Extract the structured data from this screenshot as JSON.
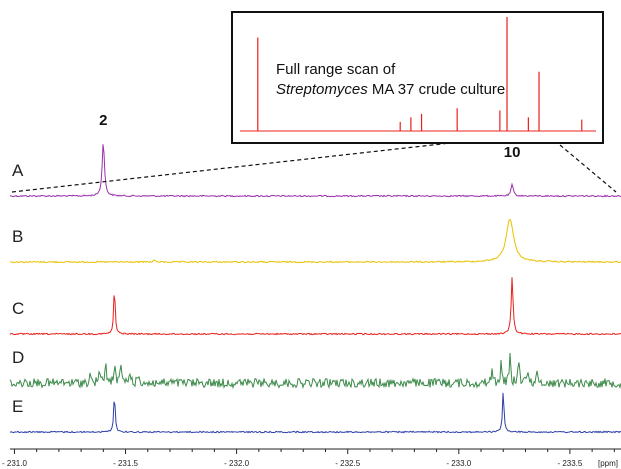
{
  "chart_data": {
    "type": "line",
    "title": "",
    "xlabel": "",
    "x_unit": "[ppm]",
    "x_axis_reversed": true,
    "xlim": [
      -230.98,
      -233.73
    ],
    "x_ticks": [
      {
        "value": -231.0,
        "label": "- 231.0"
      },
      {
        "value": -231.5,
        "label": "- 231.5"
      },
      {
        "value": -232.0,
        "label": "- 232.0"
      },
      {
        "value": -232.5,
        "label": "- 232.5"
      },
      {
        "value": -233.0,
        "label": "- 233.0"
      },
      {
        "value": -233.5,
        "label": "- 233.5"
      }
    ],
    "series": [
      {
        "name": "A",
        "color": "#9b2fae",
        "noise": "low",
        "peaks": [
          {
            "x": -231.4,
            "height": 0.95,
            "width": 0.006
          },
          {
            "x": -233.24,
            "height": 0.2,
            "width": 0.006
          }
        ]
      },
      {
        "name": "B",
        "color": "#e8c100",
        "noise": "low",
        "peaks": [
          {
            "x": -233.23,
            "height": 0.9,
            "width": 0.02
          },
          {
            "x": -231.63,
            "height": 0.05,
            "width": 0.004
          }
        ]
      },
      {
        "name": "C",
        "color": "#e8201c",
        "noise": "low",
        "peaks": [
          {
            "x": -231.45,
            "height": 0.82,
            "width": 0.004
          },
          {
            "x": -233.24,
            "height": 1.0,
            "width": 0.005
          }
        ]
      },
      {
        "name": "D",
        "color": "#3c8a4a",
        "noise": "high",
        "peaks": [
          {
            "x": -231.34,
            "height": 0.2,
            "width": 0.004
          },
          {
            "x": -231.38,
            "height": 0.3,
            "width": 0.004
          },
          {
            "x": -231.41,
            "height": 0.5,
            "width": 0.004
          },
          {
            "x": -231.45,
            "height": 0.45,
            "width": 0.004
          },
          {
            "x": -231.48,
            "height": 0.48,
            "width": 0.004
          },
          {
            "x": -231.52,
            "height": 0.3,
            "width": 0.004
          },
          {
            "x": -231.56,
            "height": 0.2,
            "width": 0.004
          },
          {
            "x": -233.15,
            "height": 0.35,
            "width": 0.004
          },
          {
            "x": -233.19,
            "height": 0.45,
            "width": 0.004
          },
          {
            "x": -233.23,
            "height": 0.65,
            "width": 0.004
          },
          {
            "x": -233.27,
            "height": 0.6,
            "width": 0.004
          },
          {
            "x": -233.31,
            "height": 0.4,
            "width": 0.004
          },
          {
            "x": -233.35,
            "height": 0.25,
            "width": 0.004
          }
        ]
      },
      {
        "name": "E",
        "color": "#2c3fa8",
        "noise": "low",
        "peaks": [
          {
            "x": -231.45,
            "height": 0.9,
            "width": 0.004
          },
          {
            "x": -233.2,
            "height": 1.0,
            "width": 0.004
          }
        ]
      }
    ],
    "peak_labels": [
      {
        "text": "2",
        "x": -231.4
      },
      {
        "text": "10",
        "x": -233.24
      }
    ],
    "inset": {
      "caption_line1": "Full range scan of",
      "caption_italic": "Streptomyces",
      "caption_rest": " MA 37 crude culture",
      "color": "#e8201c",
      "peaks": [
        {
          "x": 0.05,
          "height": 0.82
        },
        {
          "x": 0.45,
          "height": 0.08
        },
        {
          "x": 0.48,
          "height": 0.12
        },
        {
          "x": 0.51,
          "height": 0.15
        },
        {
          "x": 0.61,
          "height": 0.2
        },
        {
          "x": 0.73,
          "height": 0.18
        },
        {
          "x": 0.75,
          "height": 1.0
        },
        {
          "x": 0.81,
          "height": 0.12
        },
        {
          "x": 0.84,
          "height": 0.52
        },
        {
          "x": 0.96,
          "height": 0.1
        }
      ]
    }
  }
}
